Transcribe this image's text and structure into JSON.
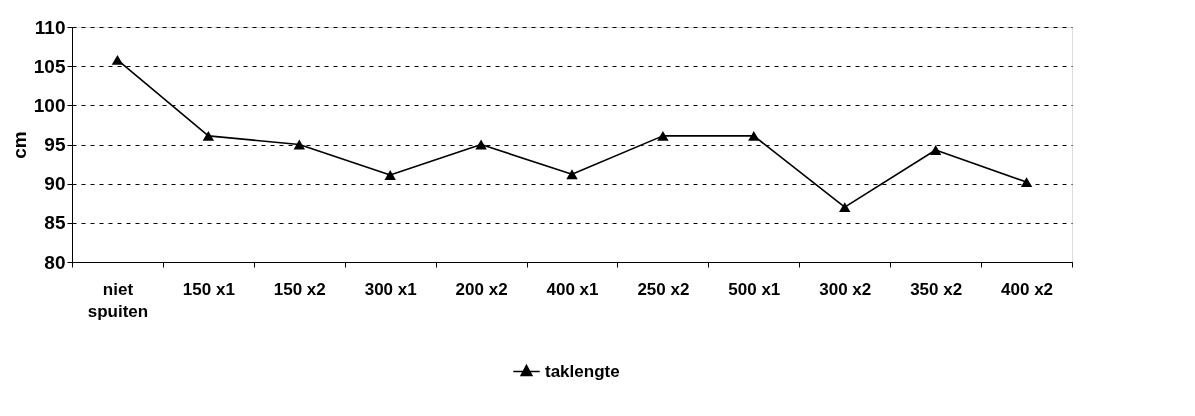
{
  "chart_data": {
    "type": "line",
    "ylabel": "cm",
    "categories": [
      "niet\nspuiten",
      "150 x1",
      "150 x2",
      "300 x1",
      "200 x2",
      "400 x1",
      "250 x2",
      "500 x1",
      "300 x2",
      "350 x2",
      "400 x2"
    ],
    "series": [
      {
        "name": "taklengte",
        "color": "#000000",
        "values": [
          105.8,
          96.1,
          95.0,
          91.1,
          95.0,
          91.2,
          96.1,
          96.1,
          87.0,
          94.3,
          90.2
        ]
      }
    ],
    "ylim": [
      80,
      110
    ],
    "yticks": [
      80,
      85,
      90,
      95,
      100,
      105,
      110
    ],
    "grid": "y",
    "legend": "bottom",
    "marker": "triangle",
    "line_style": "solid"
  }
}
